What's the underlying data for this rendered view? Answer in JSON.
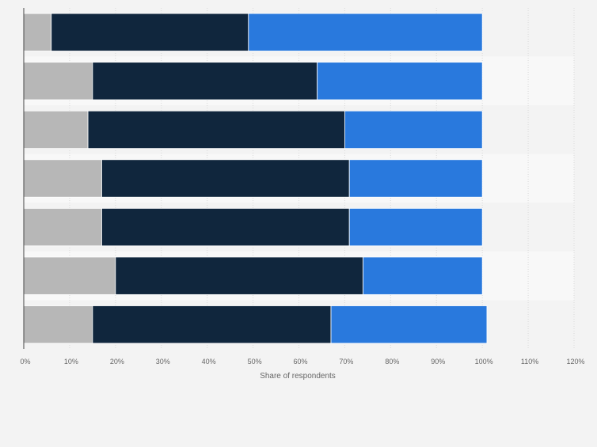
{
  "chart_data": {
    "type": "bar",
    "orientation": "horizontal",
    "stacked": true,
    "categories": [
      "",
      "",
      "",
      "",
      "",
      "",
      ""
    ],
    "series": [
      {
        "color": "#b7b7b7",
        "values": [
          6,
          15,
          14,
          17,
          17,
          20,
          15
        ]
      },
      {
        "color": "#10263d",
        "values": [
          43,
          49,
          56,
          54,
          54,
          54,
          52
        ]
      },
      {
        "color": "#2979dd",
        "values": [
          51,
          36,
          30,
          29,
          29,
          26,
          34
        ]
      }
    ],
    "xlabel": "Share of respondents",
    "ylabel": "",
    "xlim": [
      0,
      120
    ],
    "xticks": [
      "0%",
      "10%",
      "20%",
      "30%",
      "40%",
      "50%",
      "60%",
      "70%",
      "80%",
      "90%",
      "100%",
      "110%",
      "120%"
    ],
    "grid": true,
    "legend": "none",
    "colors": {
      "background": "#f3f3f3",
      "band_alt": "#f8f8f8",
      "gridline": "#d9d9d9",
      "axis": "#444444",
      "tick_text": "#666666"
    }
  }
}
